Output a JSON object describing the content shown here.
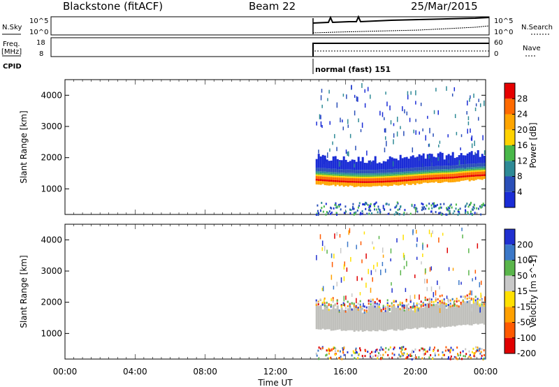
{
  "header": {
    "station": "Blackstone (fitACF)",
    "beam": "Beam 22",
    "date": "25/Mar/2015"
  },
  "strips": {
    "nsky_label": "N.Sky",
    "nsearch_label": "N.Search",
    "noise_ticks": [
      "10^5",
      "10^0"
    ],
    "freq_label_line1": "Freq.",
    "freq_label_line2": "[MHz]",
    "freq_ticks": [
      "18",
      "8"
    ],
    "nave_label": "Nave",
    "nave_ticks": [
      "60",
      "0"
    ],
    "cpid_label": "CPID",
    "cpid_value": "normal (fast) 151"
  },
  "colors": {
    "power": [
      "#1a2cd6",
      "#2a4fb8",
      "#2e8a96",
      "#49b84a",
      "#ffd200",
      "#ffa500",
      "#ff6a00",
      "#e60000"
    ],
    "velocity": [
      "#2030d0",
      "#3b78c8",
      "#5ab54b",
      "#c8c8c8",
      "#ffe000",
      "#ffa000",
      "#ff5a00",
      "#e00000"
    ],
    "ground_scatter": "#c0c0bc"
  },
  "chart_data": [
    {
      "type": "heatmap",
      "name": "power",
      "xlabel": "Time UT",
      "ylabel": "Slant Range [km]",
      "x_ticks": [
        "00:00",
        "04:00",
        "08:00",
        "12:00",
        "16:00",
        "20:00",
        "00:00"
      ],
      "x_range_hours": [
        0,
        24
      ],
      "y_ticks": [
        1000,
        2000,
        3000,
        4000
      ],
      "ylim": [
        180,
        4500
      ],
      "data_start_hour": 14.3,
      "colorbar": {
        "label": "Power [dB]",
        "ticks": [
          4,
          8,
          12,
          16,
          20,
          24,
          28
        ],
        "range": [
          0,
          32
        ]
      }
    },
    {
      "type": "heatmap",
      "name": "velocity",
      "xlabel": "Time UT",
      "ylabel": "Slant Range [km]",
      "x_ticks": [
        "00:00",
        "04:00",
        "08:00",
        "12:00",
        "16:00",
        "20:00",
        "00:00"
      ],
      "x_range_hours": [
        0,
        24
      ],
      "y_ticks": [
        1000,
        2000,
        3000,
        4000
      ],
      "ylim": [
        180,
        4500
      ],
      "data_start_hour": 14.3,
      "colorbar": {
        "label": "Velocity [m s^-1]",
        "ticks": [
          200,
          100,
          50,
          15,
          -15,
          -50,
          -100,
          -200
        ]
      }
    }
  ]
}
